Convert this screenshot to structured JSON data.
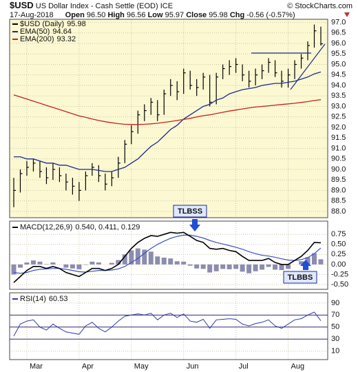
{
  "header": {
    "symbol": "$USD",
    "name": "US Dollar Index - Cash Settle (EOD) ICE",
    "credit": "© StockCharts.com",
    "date": "17-Aug-2018",
    "quote": [
      {
        "label": "Open",
        "value": "96.50"
      },
      {
        "label": "High",
        "value": "96.56"
      },
      {
        "label": "Low",
        "value": "95.97"
      },
      {
        "label": "Close",
        "value": "95.98"
      },
      {
        "label": "Chg",
        "value": "-0.56 (-0.57%)"
      }
    ]
  },
  "chart_data": [
    {
      "type": "ohlc",
      "background": "#fbf8d2",
      "grid": true,
      "categories": [
        null,
        null,
        "Mar",
        null,
        null,
        null,
        null,
        null,
        null,
        null,
        "Apr",
        null,
        null,
        null,
        null,
        null,
        null,
        null,
        "May",
        null,
        null,
        null,
        null,
        null,
        null,
        null,
        "Jun",
        null,
        null,
        null,
        null,
        null,
        null,
        null,
        "Jul",
        null,
        null,
        null,
        null,
        null,
        null,
        null,
        "Aug",
        null,
        null,
        null,
        null,
        null
      ],
      "ylim": [
        87.7,
        97.15
      ],
      "yticks": [
        {
          "value": 88,
          "label": "88.0"
        },
        88.5,
        {
          "value": 89,
          "label": "89.0"
        },
        89.5,
        {
          "value": 90,
          "label": "90.0"
        },
        90.5,
        {
          "value": 91,
          "label": "91.0"
        },
        91.5,
        {
          "value": 92,
          "label": "92.0"
        },
        92.5,
        {
          "value": 93,
          "label": "93.0"
        },
        93.5,
        {
          "value": 94,
          "label": "94.0"
        },
        94.5,
        {
          "value": 95,
          "label": "95.0"
        },
        95.5,
        {
          "value": 96,
          "label": "96.0"
        },
        96.5,
        {
          "value": 97,
          "label": "97.0"
        }
      ],
      "series": [
        {
          "name": "$USD (Daily)",
          "legend_value": "95.98",
          "color": "#000000",
          "high": [
            89.6,
            90.0,
            90.4,
            90.5,
            90.4,
            90.1,
            90.3,
            90.1,
            89.8,
            89.6,
            89.4,
            89.9,
            90.3,
            90.2,
            89.8,
            89.9,
            90.6,
            91.4,
            92.1,
            92.8,
            93.1,
            93.4,
            93.3,
            93.8,
            94.3,
            94.2,
            94.8,
            94.7,
            94.3,
            94.6,
            94.5,
            94.6,
            95.0,
            95.2,
            95.3,
            95.0,
            94.7,
            94.8,
            95.0,
            95.3,
            95.2,
            94.7,
            94.8,
            95.2,
            95.5,
            96.1,
            96.9,
            96.8
          ],
          "low": [
            88.2,
            88.9,
            89.7,
            89.9,
            89.6,
            89.3,
            89.5,
            89.4,
            89.0,
            88.8,
            88.5,
            89.0,
            89.7,
            89.4,
            89.0,
            89.2,
            89.6,
            90.3,
            91.2,
            91.7,
            92.3,
            92.6,
            92.3,
            92.6,
            93.5,
            93.3,
            93.6,
            93.8,
            93.5,
            93.8,
            93.0,
            93.1,
            94.3,
            94.5,
            94.6,
            94.2,
            93.9,
            94.0,
            94.3,
            94.6,
            94.4,
            93.9,
            93.9,
            94.3,
            94.8,
            95.2,
            95.8,
            95.9
          ],
          "close": [
            89.0,
            89.8,
            90.1,
            90.3,
            89.9,
            89.6,
            90.0,
            89.7,
            89.4,
            89.2,
            89.0,
            89.7,
            90.1,
            89.7,
            89.3,
            89.6,
            90.3,
            91.2,
            91.8,
            92.6,
            92.8,
            93.2,
            92.6,
            93.6,
            94.0,
            93.7,
            94.6,
            94.0,
            93.9,
            94.4,
            93.2,
            94.4,
            94.8,
            94.9,
            95.0,
            94.5,
            94.2,
            94.5,
            94.7,
            95.1,
            94.6,
            94.2,
            94.5,
            95.0,
            95.3,
            95.9,
            96.6,
            95.98
          ]
        },
        {
          "name": "EMA(50)",
          "legend_value": "94.64",
          "color": "#1c2a8c",
          "values": [
            90.6,
            90.6,
            90.5,
            90.5,
            90.4,
            90.3,
            90.3,
            90.2,
            90.2,
            90.1,
            90.0,
            90.0,
            90.0,
            89.95,
            89.9,
            89.9,
            90.0,
            90.1,
            90.3,
            90.5,
            90.8,
            91.1,
            91.3,
            91.6,
            91.9,
            92.1,
            92.4,
            92.6,
            92.8,
            93.0,
            93.1,
            93.3,
            93.4,
            93.6,
            93.7,
            93.8,
            93.85,
            93.9,
            94.0,
            94.05,
            94.1,
            94.1,
            94.15,
            94.2,
            94.3,
            94.4,
            94.55,
            94.64
          ]
        },
        {
          "name": "EMA(200)",
          "legend_value": "93.32",
          "color": "#cc1f1f",
          "values": [
            93.55,
            93.45,
            93.35,
            93.25,
            93.15,
            93.05,
            92.95,
            92.85,
            92.75,
            92.65,
            92.55,
            92.48,
            92.4,
            92.33,
            92.27,
            92.22,
            92.18,
            92.15,
            92.14,
            92.14,
            92.15,
            92.17,
            92.2,
            92.24,
            92.28,
            92.33,
            92.38,
            92.43,
            92.5,
            92.56,
            92.6,
            92.66,
            92.72,
            92.78,
            92.83,
            92.88,
            92.93,
            92.97,
            93.0,
            93.03,
            93.06,
            93.09,
            93.12,
            93.15,
            93.19,
            93.23,
            93.28,
            93.32
          ]
        }
      ]
    },
    {
      "type": "macd",
      "background": "#ffffff",
      "name": "MACD(12,26,9)",
      "legend_values": "0.540, 0.411, 0.129",
      "ylim": [
        -0.62,
        1.08
      ],
      "yticks": [
        0.75,
        {
          "value": 0.5,
          "label": "0.50"
        },
        0.25,
        {
          "value": 0,
          "label": "0.00"
        },
        -0.25,
        {
          "value": -0.5,
          "label": "-0.50"
        }
      ],
      "colors": {
        "macd": "#000000",
        "signal": "#3b4fc4",
        "histogram": "#8c8cb0"
      },
      "annotations": [
        "TLBSS",
        "TLBBS"
      ],
      "macd": [
        -0.45,
        -0.3,
        -0.15,
        -0.05,
        -0.05,
        -0.1,
        -0.05,
        -0.1,
        -0.2,
        -0.25,
        -0.3,
        -0.2,
        -0.1,
        -0.1,
        -0.15,
        -0.1,
        0.0,
        0.2,
        0.4,
        0.55,
        0.65,
        0.72,
        0.7,
        0.75,
        0.8,
        0.78,
        0.8,
        0.7,
        0.6,
        0.55,
        0.4,
        0.38,
        0.4,
        0.35,
        0.32,
        0.2,
        0.1,
        0.1,
        0.1,
        0.15,
        0.05,
        0.0,
        0.0,
        0.1,
        0.2,
        0.35,
        0.55,
        0.54
      ],
      "signal": [
        -0.2,
        -0.22,
        -0.2,
        -0.15,
        -0.12,
        -0.11,
        -0.1,
        -0.1,
        -0.12,
        -0.15,
        -0.18,
        -0.19,
        -0.17,
        -0.15,
        -0.15,
        -0.14,
        -0.11,
        -0.05,
        0.05,
        0.15,
        0.28,
        0.4,
        0.5,
        0.58,
        0.65,
        0.7,
        0.73,
        0.73,
        0.7,
        0.66,
        0.6,
        0.55,
        0.51,
        0.47,
        0.43,
        0.38,
        0.32,
        0.27,
        0.23,
        0.21,
        0.18,
        0.14,
        0.11,
        0.1,
        0.12,
        0.17,
        0.27,
        0.41
      ],
      "histogram": [
        -0.25,
        -0.08,
        0.05,
        0.1,
        0.07,
        0.01,
        0.05,
        0.0,
        -0.08,
        -0.1,
        -0.12,
        -0.01,
        0.07,
        0.05,
        0.0,
        0.04,
        0.11,
        0.25,
        0.35,
        0.4,
        0.37,
        0.32,
        0.2,
        0.17,
        0.15,
        0.08,
        0.07,
        -0.03,
        -0.1,
        -0.11,
        -0.2,
        -0.17,
        -0.11,
        -0.12,
        -0.11,
        -0.18,
        -0.22,
        -0.17,
        -0.13,
        -0.06,
        -0.13,
        -0.14,
        -0.11,
        0.0,
        0.08,
        0.18,
        0.28,
        0.129
      ]
    },
    {
      "type": "rsi",
      "background": "#ffffff",
      "name": "RSI(14)",
      "legend_value": "60.53",
      "color": "#2b3aa8",
      "ylim": [
        -4,
        107
      ],
      "yticks": [
        90,
        70,
        50,
        30,
        10
      ],
      "levels": [
        70,
        50,
        30
      ],
      "values": [
        35,
        55,
        60,
        62,
        50,
        45,
        55,
        48,
        42,
        40,
        38,
        52,
        58,
        48,
        42,
        50,
        60,
        68,
        70,
        72,
        70,
        73,
        62,
        70,
        73,
        66,
        72,
        60,
        58,
        63,
        48,
        62,
        63,
        64,
        63,
        55,
        52,
        56,
        58,
        62,
        52,
        48,
        55,
        62,
        64,
        70,
        75,
        60.53
      ]
    }
  ]
}
